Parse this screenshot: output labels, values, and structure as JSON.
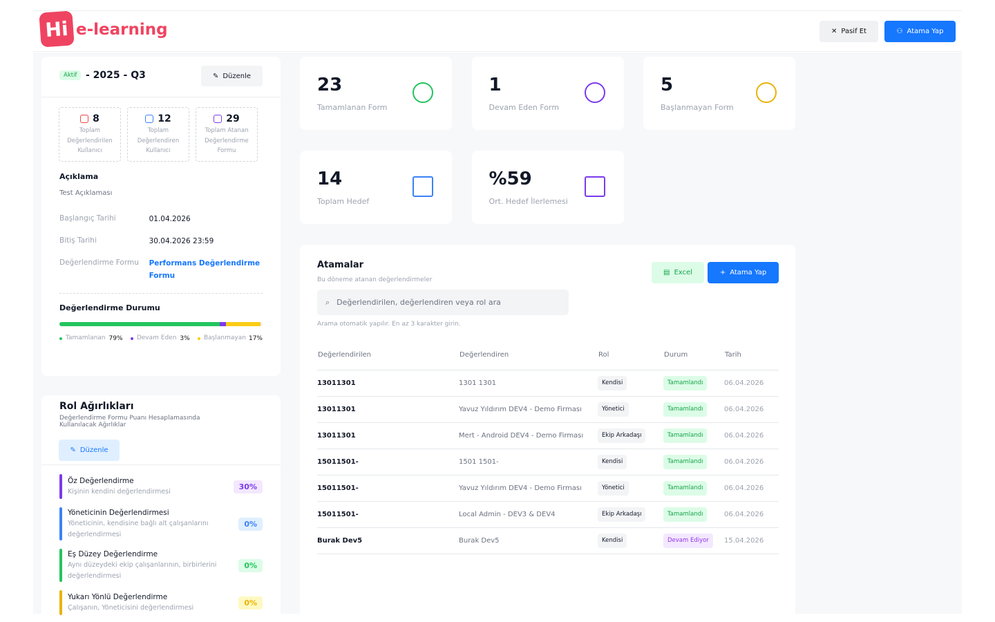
{
  "header": {
    "logo_mark": "Hi",
    "logo_text": "e-learning",
    "deactivate": "Pasif Et",
    "assign": "Atama Yap"
  },
  "period": {
    "status": "Aktif",
    "title": "- 2025 - Q3",
    "edit": "Düzenle",
    "counts": [
      {
        "value": "8",
        "label": "Toplam Değerlendirilen Kullanıcı",
        "color": "#ef4444"
      },
      {
        "value": "12",
        "label": "Toplam Değerlendiren Kullanıcı",
        "color": "#3b82f6"
      },
      {
        "value": "29",
        "label": "Toplam Atanan Değerlendirme Formu",
        "color": "#7c3aed"
      }
    ],
    "description_label": "Açıklama",
    "description": "Test Açıklaması",
    "details": [
      {
        "label": "Başlangıç Tarihi",
        "value": "01.04.2026"
      },
      {
        "label": "Bitiş Tarihi",
        "value": "30.04.2026 23:59"
      },
      {
        "label": "Değerlendirme Formu",
        "value": "Performans Değerlendirme Formu",
        "link": true
      }
    ],
    "progress": {
      "title": "Değerlendirme Durumu",
      "segments": [
        {
          "name": "Tamamlanan",
          "value": 79,
          "value_label": "79%",
          "color": "#22c55e"
        },
        {
          "name": "Devam Eden",
          "value": 3,
          "value_label": "3%",
          "color": "#7c3aed"
        },
        {
          "name": "Başlanmayan",
          "value": 17,
          "value_label": "17%",
          "color": "#facc15"
        }
      ]
    }
  },
  "roles": {
    "title": "Rol Ağırlıkları",
    "subtitle": "Değerlendirme Formu Puanı Hesaplamasında Kullanılacak Ağırlıklar",
    "edit": "Düzenle",
    "items": [
      {
        "name": "Öz Değerlendirme",
        "description": "Kişinin kendini değerlendirmesi",
        "weight": "30%",
        "color": "#7c3aed",
        "bg": "#f3e8ff"
      },
      {
        "name": "Yöneticinin Değerlendirmesi",
        "description": "Yöneticinin, kendisine bağlı alt çalışanlarını değerlendirmesi",
        "weight": "0%",
        "color": "#3b82f6",
        "bg": "#e0efff"
      },
      {
        "name": "Eş Düzey Değerlendirme",
        "description": "Aynı düzeydeki ekip çalışanlarının, birbirlerini değerlendirmesi",
        "weight": "0%",
        "color": "#22c55e",
        "bg": "#dcfce7"
      },
      {
        "name": "Yukarı Yönlü Değerlendirme",
        "description": "Çalışanın, Yöneticisini değerlendirmesi",
        "weight": "0%",
        "color": "#eab308",
        "bg": "#fef9c3"
      }
    ]
  },
  "stats": [
    {
      "value": "23",
      "label": "Tamamlanan Form",
      "color": "#22c55e"
    },
    {
      "value": "1",
      "label": "Devam Eden Form",
      "color": "#7c3aed"
    },
    {
      "value": "5",
      "label": "Başlanmayan Form",
      "color": "#eab308"
    },
    {
      "value": "14",
      "label": "Toplam Hedef",
      "color": "#3b82f6"
    },
    {
      "value": "%59",
      "label": "Ort. Hedef İlerlemesi",
      "color": "#7c3aed"
    }
  ],
  "assignments": {
    "title": "Atamalar",
    "subtitle": "Bu döneme atanan değerlendirmeler",
    "excel": "Excel",
    "assign": "Atama Yap",
    "search_placeholder": "Değerlendirilen, değerlendiren veya rol ara",
    "hint": "Arama otomatik yapılır. En az 3 karakter girin.",
    "columns": [
      "Değerlendirilen",
      "Değerlendiren",
      "Rol",
      "Durum",
      "Tarih"
    ],
    "rows": [
      {
        "evaluated": "13011301",
        "evaluator": "1301 1301",
        "role": "Kendisi",
        "status": "Tamamlandı",
        "status_color": "#16a34a",
        "status_bg": "#dcfce7",
        "date": "06.04.2026"
      },
      {
        "evaluated": "13011301",
        "evaluator": "Yavuz Yıldırım DEV4 - Demo Firması",
        "role": "Yönetici",
        "status": "Tamamlandı",
        "status_color": "#16a34a",
        "status_bg": "#dcfce7",
        "date": "06.04.2026"
      },
      {
        "evaluated": "13011301",
        "evaluator": "Mert - Android DEV4 - Demo Firması",
        "role": "Ekip Arkadaşı",
        "status": "Tamamlandı",
        "status_color": "#16a34a",
        "status_bg": "#dcfce7",
        "date": "06.04.2026"
      },
      {
        "evaluated": "15011501-",
        "evaluator": "1501 1501-",
        "role": "Kendisi",
        "status": "Tamamlandı",
        "status_color": "#16a34a",
        "status_bg": "#dcfce7",
        "date": "06.04.2026"
      },
      {
        "evaluated": "15011501-",
        "evaluator": "Yavuz Yıldırım DEV4 - Demo Firması",
        "role": "Yönetici",
        "status": "Tamamlandı",
        "status_color": "#16a34a",
        "status_bg": "#dcfce7",
        "date": "06.04.2026"
      },
      {
        "evaluated": "15011501-",
        "evaluator": "Local Admin - DEV3 & DEV4",
        "role": "Ekip Arkadaşı",
        "status": "Tamamlandı",
        "status_color": "#16a34a",
        "status_bg": "#dcfce7",
        "date": "06.04.2026"
      },
      {
        "evaluated": "Burak Dev5",
        "evaluator": "Burak Dev5",
        "role": "Kendisi",
        "status": "Devam Ediyor",
        "status_color": "#9333ea",
        "status_bg": "#f3e8ff",
        "date": "15.04.2026"
      }
    ]
  }
}
